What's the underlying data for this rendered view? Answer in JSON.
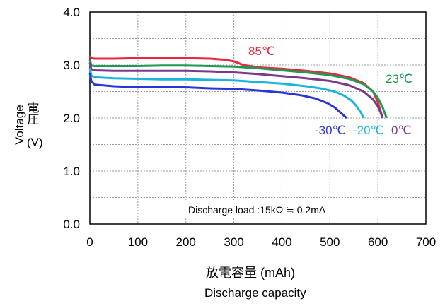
{
  "chart_data": {
    "type": "line",
    "xlabel_jp": "放電容量 (mAh)",
    "xlabel_en": "Discharge capacity",
    "ylabel_en": "Voltage",
    "ylabel_jp": "電圧",
    "ylabel_unit": "(V)",
    "xlim": [
      0,
      700
    ],
    "ylim": [
      0.0,
      4.0
    ],
    "x_ticks": [
      "0",
      "100",
      "200",
      "300",
      "400",
      "500",
      "600",
      "700"
    ],
    "y_ticks": [
      "0.0",
      "1.0",
      "2.0",
      "3.0",
      "4.0"
    ],
    "grid": true,
    "annotation": "Discharge load :15kΩ ≒ 0.2mA",
    "series": [
      {
        "name": "85℃",
        "color": "#e8283c",
        "x": [
          0,
          3,
          10,
          50,
          100,
          150,
          200,
          250,
          280,
          300,
          320,
          340,
          360,
          400,
          450,
          500,
          540,
          570,
          590,
          600,
          605,
          610
        ],
        "y": [
          3.18,
          3.13,
          3.12,
          3.12,
          3.13,
          3.13,
          3.13,
          3.12,
          3.1,
          3.07,
          3.0,
          2.97,
          2.95,
          2.93,
          2.89,
          2.84,
          2.77,
          2.66,
          2.5,
          2.3,
          2.15,
          2.0
        ]
      },
      {
        "name": "23℃",
        "color": "#1f9a52",
        "x": [
          0,
          3,
          10,
          50,
          100,
          150,
          200,
          250,
          300,
          350,
          400,
          450,
          500,
          540,
          570,
          590,
          600,
          610,
          615,
          618
        ],
        "y": [
          3.1,
          2.99,
          2.98,
          2.98,
          2.98,
          2.99,
          2.99,
          2.98,
          2.97,
          2.94,
          2.9,
          2.86,
          2.81,
          2.74,
          2.64,
          2.5,
          2.38,
          2.2,
          2.08,
          2.0
        ]
      },
      {
        "name": "0℃",
        "color": "#7a3a8c",
        "x": [
          0,
          3,
          10,
          50,
          100,
          150,
          200,
          250,
          300,
          350,
          400,
          450,
          500,
          540,
          570,
          590,
          600,
          605,
          610
        ],
        "y": [
          3.05,
          2.92,
          2.9,
          2.89,
          2.89,
          2.89,
          2.89,
          2.88,
          2.86,
          2.83,
          2.79,
          2.75,
          2.7,
          2.62,
          2.5,
          2.35,
          2.22,
          2.12,
          2.0
        ]
      },
      {
        "name": "-20℃",
        "color": "#1ab4dc",
        "x": [
          0,
          3,
          10,
          50,
          100,
          150,
          200,
          250,
          300,
          350,
          400,
          450,
          480,
          510,
          530,
          545,
          555,
          565,
          570
        ],
        "y": [
          2.95,
          2.8,
          2.77,
          2.75,
          2.74,
          2.73,
          2.73,
          2.72,
          2.71,
          2.68,
          2.65,
          2.6,
          2.56,
          2.5,
          2.42,
          2.33,
          2.23,
          2.1,
          2.0
        ]
      },
      {
        "name": "-30℃",
        "color": "#2a35d8",
        "x": [
          0,
          3,
          10,
          50,
          100,
          150,
          200,
          250,
          300,
          350,
          400,
          440,
          470,
          495,
          510,
          520,
          530,
          535
        ],
        "y": [
          2.85,
          2.7,
          2.63,
          2.6,
          2.58,
          2.58,
          2.58,
          2.56,
          2.55,
          2.52,
          2.48,
          2.43,
          2.37,
          2.28,
          2.2,
          2.12,
          2.04,
          2.0
        ]
      }
    ],
    "label_colors": {
      "85℃": "#e8283c",
      "23℃": "#1f9a52",
      "0℃": "#7a3a8c",
      "-20℃": "#1ab4dc",
      "-30℃": "#2a35d8"
    }
  }
}
